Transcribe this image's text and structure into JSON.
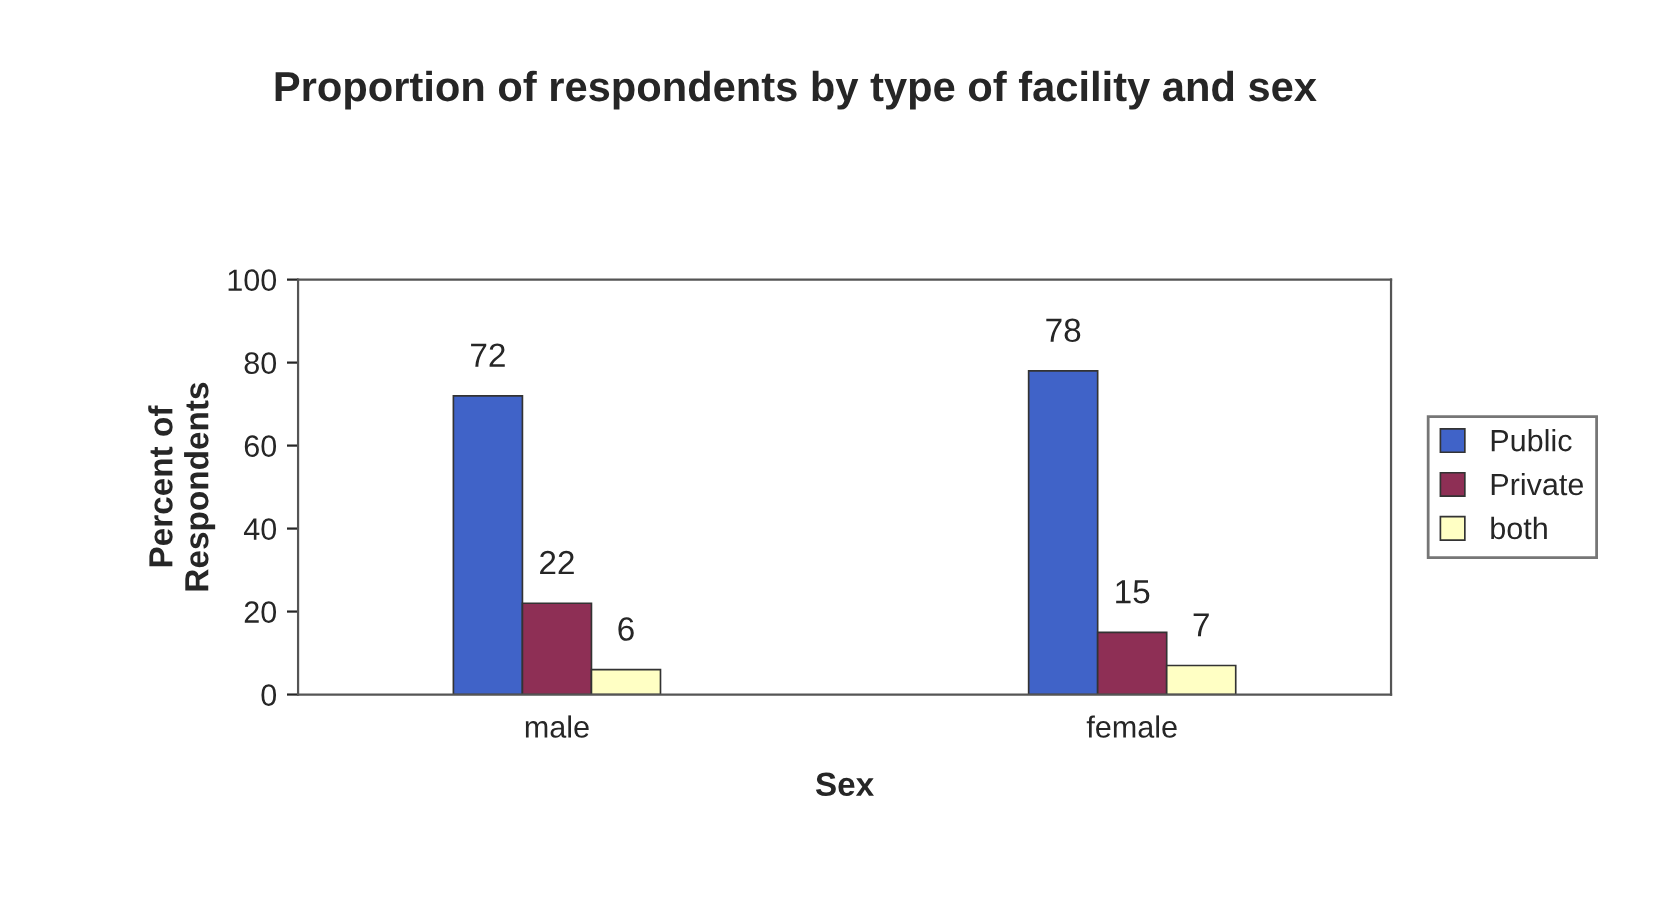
{
  "chart_data": {
    "type": "bar",
    "title": "Proportion of respondents by type of facility and sex",
    "xlabel": "Sex",
    "ylabel": "Percent of\nRespondents",
    "categories": [
      "male",
      "female"
    ],
    "series": [
      {
        "name": "Public",
        "color": "#4063c8",
        "values": [
          72,
          78
        ]
      },
      {
        "name": "Private",
        "color": "#8e2f55",
        "values": [
          22,
          15
        ]
      },
      {
        "name": "both",
        "color": "#ffffc4",
        "values": [
          6,
          7
        ]
      }
    ],
    "ylim": [
      0,
      100
    ],
    "yticks": [
      0,
      20,
      40,
      60,
      80,
      100
    ],
    "data_labels": true,
    "grid": false,
    "legend": "right"
  }
}
